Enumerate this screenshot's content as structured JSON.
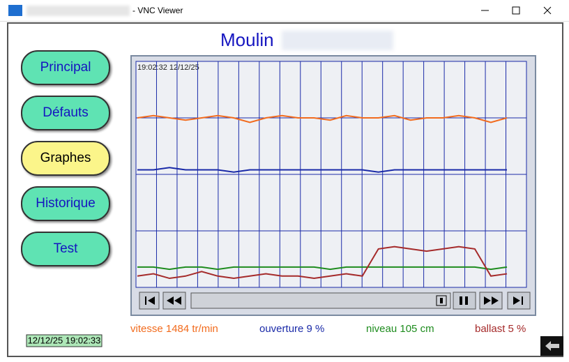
{
  "window": {
    "title": "- VNC Viewer"
  },
  "header": {
    "title": "Moulin"
  },
  "nav": [
    "Principal",
    "Défauts",
    "Graphes",
    "Historique",
    "Test"
  ],
  "chart_data": {
    "type": "line",
    "timestamp": "19:02:32  12/12/25",
    "ylim": [
      0,
      100
    ],
    "series": [
      {
        "color": "#f26b1d",
        "values": [
          75,
          76,
          75,
          74,
          75,
          76,
          75,
          73,
          75,
          76,
          75,
          75,
          74,
          76,
          75,
          75,
          76,
          74,
          75,
          75,
          76,
          75,
          73,
          75
        ]
      },
      {
        "color": "#1a2aa8",
        "values": [
          52,
          52,
          53,
          52,
          52,
          52,
          51,
          52,
          52,
          52,
          52,
          52,
          52,
          52,
          52,
          51,
          52,
          52,
          52,
          52,
          52,
          52,
          52,
          52
        ]
      },
      {
        "color": "#1e8c1e",
        "values": [
          9,
          9,
          8,
          9,
          9,
          8,
          9,
          9,
          9,
          9,
          9,
          9,
          8,
          9,
          9,
          9,
          9,
          9,
          9,
          9,
          9,
          9,
          8,
          9
        ]
      },
      {
        "color": "#a52a2a",
        "values": [
          5,
          6,
          4,
          5,
          7,
          5,
          4,
          5,
          6,
          5,
          5,
          4,
          5,
          6,
          5,
          17,
          18,
          17,
          16,
          17,
          18,
          17,
          5,
          6
        ]
      }
    ]
  },
  "legend": [
    "vitesse 1484 tr/min",
    "ouverture 9 %",
    "niveau 105 cm",
    "ballast 5 %"
  ],
  "clock": "12/12/25 19:02:33"
}
